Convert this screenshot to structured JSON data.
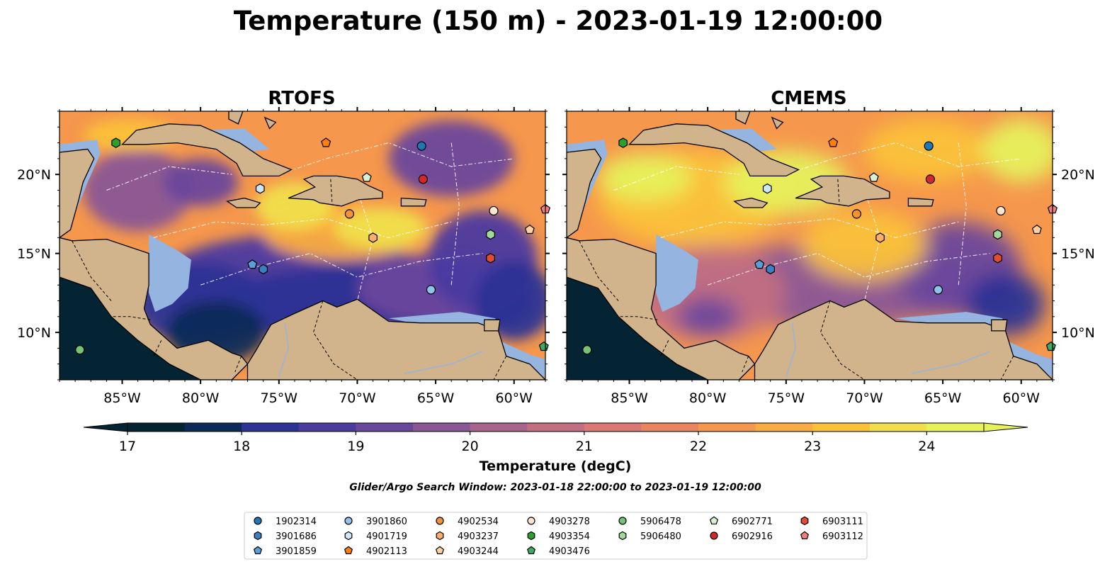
{
  "title": "Temperature (150 m) - 2023-01-19 12:00:00",
  "colors": {
    "land": "#d2b48c",
    "shelf": "#95b4e0",
    "ramp": [
      "#042333",
      "#0b2a58",
      "#2c3395",
      "#4b3aa0",
      "#6a479c",
      "#895696",
      "#a7658e",
      "#c26f82",
      "#db7873",
      "#eb8560",
      "#f5974c",
      "#fbab3f",
      "#fbc238",
      "#f0df4b",
      "#e6f15c"
    ]
  },
  "panels": [
    {
      "title": "RTOFS"
    },
    {
      "title": "CMEMS"
    }
  ],
  "colorbar": {
    "label": "Temperature (degC)",
    "min": 17,
    "max": 24.5,
    "extend": "both",
    "ticks": [
      "17",
      "18",
      "19",
      "20",
      "21",
      "22",
      "23",
      "24"
    ]
  },
  "search_window": "Glider/Argo Search Window: 2023-01-18 22:00:00 to 2023-01-19 12:00:00",
  "chart_data": {
    "type": "heatmap",
    "title": "Temperature (150 m) - 2023-01-19 12:00:00",
    "variable": "Temperature (degC)",
    "depth_m": 150,
    "value_range": [
      17,
      24.5
    ],
    "panels": [
      "RTOFS",
      "CMEMS"
    ],
    "x_axis": {
      "lon_range": [
        -89,
        -58
      ],
      "ticks": [
        -85,
        -80,
        -75,
        -70,
        -65,
        -60
      ],
      "tick_labels": [
        "85°W",
        "80°W",
        "75°W",
        "70°W",
        "65°W",
        "60°W"
      ]
    },
    "y_axis": {
      "lat_range": [
        7,
        24
      ],
      "ticks": [
        10,
        15,
        20
      ],
      "tick_labels": [
        "10°N",
        "15°N",
        "20°N"
      ]
    },
    "grid": false,
    "legend_placement": "bottom",
    "floats": [
      {
        "id": "1902314",
        "lon": -65.9,
        "lat": 21.8,
        "marker": "circle",
        "color": "#1f77b4"
      },
      {
        "id": "3901686",
        "lon": -76.0,
        "lat": 14.0,
        "marker": "hexagon",
        "color": "#3b80c3"
      },
      {
        "id": "3901859",
        "lon": -76.7,
        "lat": 14.3,
        "marker": "pentagon",
        "color": "#5aa0d8"
      },
      {
        "id": "3901860",
        "lon": -65.3,
        "lat": 12.7,
        "marker": "circle",
        "color": "#8fc3e8"
      },
      {
        "id": "4901719",
        "lon": -76.2,
        "lat": 19.1,
        "marker": "hexagon",
        "color": "#cfe6f6"
      },
      {
        "id": "4902113",
        "lon": -72.0,
        "lat": 22.0,
        "marker": "pentagon",
        "color": "#ff7f0e"
      },
      {
        "id": "4902534",
        "lon": -70.5,
        "lat": 17.5,
        "marker": "circle",
        "color": "#f79232"
      },
      {
        "id": "4903237",
        "lon": -69.0,
        "lat": 16.0,
        "marker": "hexagon",
        "color": "#fdae6b"
      },
      {
        "id": "4903244",
        "lon": -59.0,
        "lat": 16.5,
        "marker": "pentagon",
        "color": "#fdd0a2"
      },
      {
        "id": "4903278",
        "lon": -61.3,
        "lat": 17.7,
        "marker": "circle",
        "color": "#fde6cf"
      },
      {
        "id": "4903354",
        "lon": -85.4,
        "lat": 22.0,
        "marker": "hexagon",
        "color": "#2ca02c"
      },
      {
        "id": "4903476",
        "lon": -58.1,
        "lat": 9.1,
        "marker": "pentagon",
        "color": "#41ab5d"
      },
      {
        "id": "5906478",
        "lon": -87.7,
        "lat": 8.9,
        "marker": "circle",
        "color": "#74c476"
      },
      {
        "id": "5906480",
        "lon": -61.5,
        "lat": 16.2,
        "marker": "hexagon",
        "color": "#a1d99b"
      },
      {
        "id": "6902771",
        "lon": -69.4,
        "lat": 19.8,
        "marker": "pentagon",
        "color": "#d9f0d3"
      },
      {
        "id": "6902916",
        "lon": -65.8,
        "lat": 19.7,
        "marker": "circle",
        "color": "#d62728"
      },
      {
        "id": "6903111",
        "lon": -61.5,
        "lat": 14.7,
        "marker": "hexagon",
        "color": "#e34a33"
      },
      {
        "id": "6903112",
        "lon": -58.0,
        "lat": 17.8,
        "marker": "pentagon",
        "color": "#f08080"
      }
    ]
  },
  "legend": {
    "columns": [
      [
        "1902314",
        "3901686",
        "3901859"
      ],
      [
        "3901860",
        "4901719",
        "4902113"
      ],
      [
        "4902534",
        "4903237",
        "4903244"
      ],
      [
        "4903278",
        "4903354",
        "4903476"
      ],
      [
        "5906478",
        "5906480"
      ],
      [
        "6902771",
        "6902916"
      ],
      [
        "6903111",
        "6903112"
      ]
    ]
  }
}
